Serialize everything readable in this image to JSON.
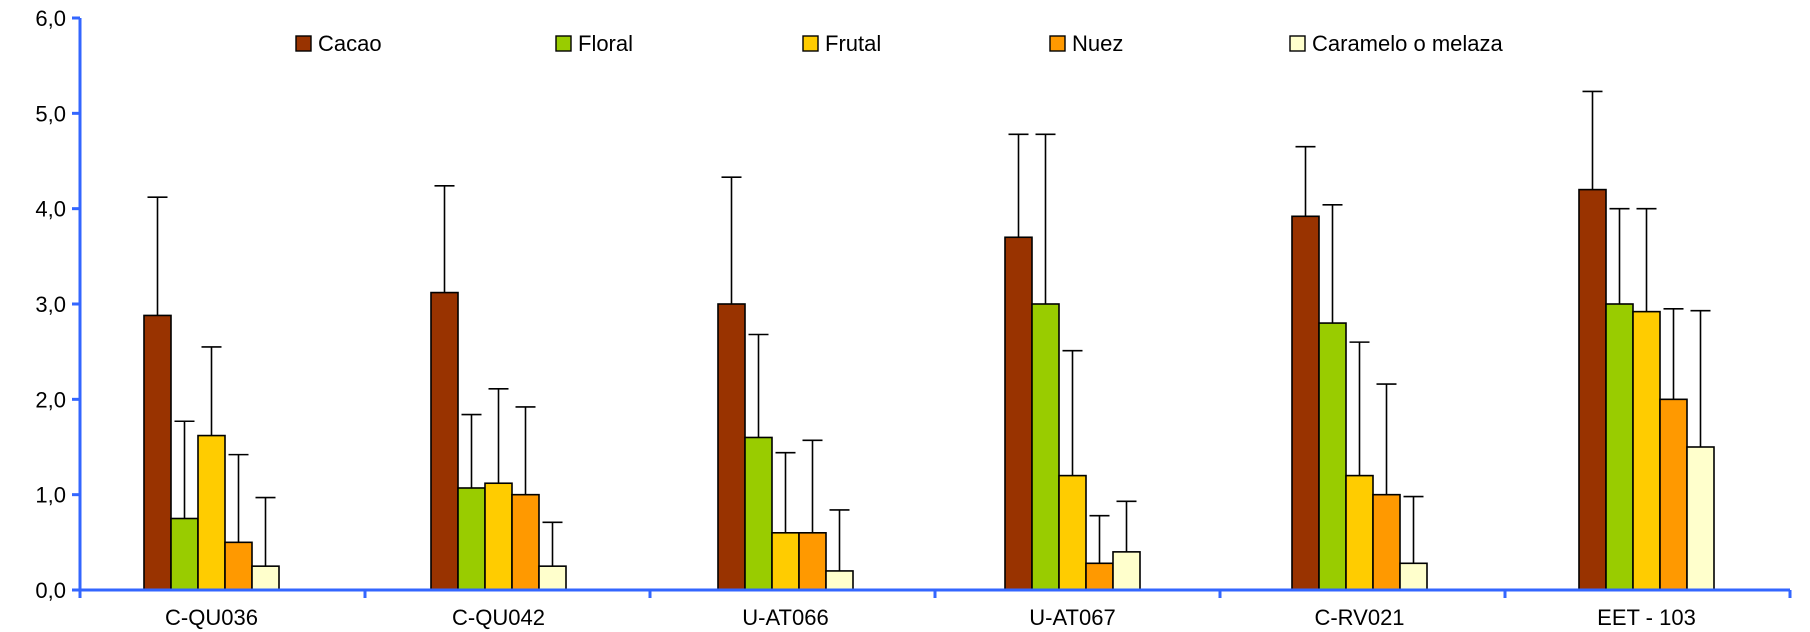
{
  "chart_data": {
    "type": "bar",
    "title": "",
    "xlabel": "",
    "ylabel": "",
    "ylim": [
      0,
      6
    ],
    "yticks": [
      "0,0",
      "1,0",
      "2,0",
      "3,0",
      "4,0",
      "5,0",
      "6,0"
    ],
    "categories": [
      "C-QU036",
      "C-QU042",
      "U-AT066",
      "U-AT067",
      "C-RV021",
      "EET - 103"
    ],
    "legend_position": "top",
    "grid": false,
    "series": [
      {
        "name": "Cacao",
        "color": "#993300",
        "values": [
          2.88,
          3.12,
          3.0,
          3.7,
          3.92,
          4.2
        ],
        "error": [
          1.24,
          1.12,
          1.33,
          1.08,
          0.73,
          1.03
        ]
      },
      {
        "name": "Floral",
        "color": "#99CC00",
        "values": [
          0.75,
          1.07,
          1.6,
          3.0,
          2.8,
          3.0
        ],
        "error": [
          1.02,
          0.77,
          1.08,
          1.78,
          1.24,
          1.0
        ]
      },
      {
        "name": "Frutal",
        "color": "#FFCC00",
        "values": [
          1.62,
          1.12,
          0.6,
          1.2,
          1.2,
          2.92
        ],
        "error": [
          0.93,
          0.99,
          0.84,
          1.31,
          1.4,
          1.08
        ]
      },
      {
        "name": "Nuez",
        "color": "#FF9900",
        "values": [
          0.5,
          1.0,
          0.6,
          0.28,
          1.0,
          2.0
        ],
        "error": [
          0.92,
          0.92,
          0.97,
          0.5,
          1.16,
          0.95
        ]
      },
      {
        "name": "Caramelo o melaza",
        "color": "#FFFFCC",
        "values": [
          0.25,
          0.25,
          0.2,
          0.4,
          0.28,
          1.5
        ],
        "error": [
          0.72,
          0.46,
          0.64,
          0.53,
          0.7,
          1.43
        ]
      }
    ]
  }
}
